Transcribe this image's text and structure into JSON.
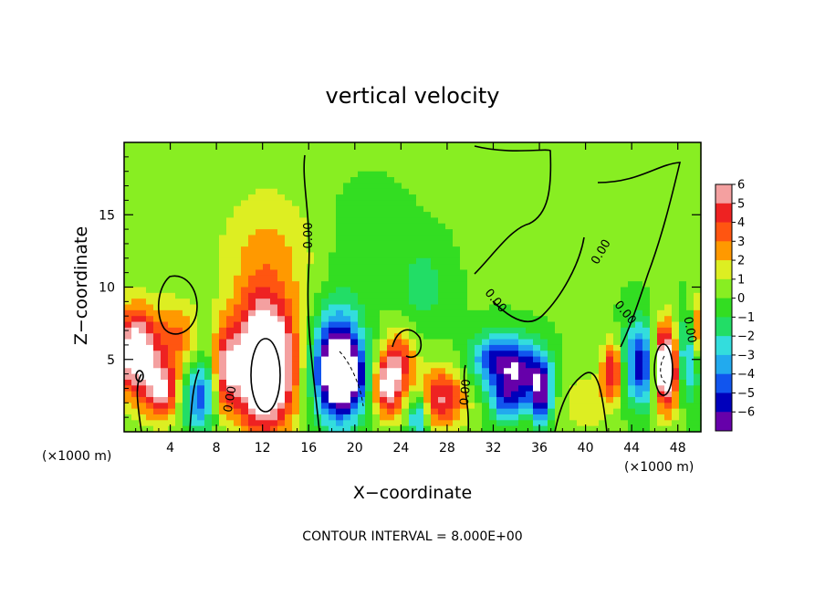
{
  "chart_data": {
    "type": "heatmap",
    "title": "vertical velocity",
    "xlabel": "X−coordinate",
    "ylabel": "Z−coordinate",
    "x_unit_left": "(×1000 m)",
    "x_unit_right": "(×1000 m)",
    "footer": "CONTOUR INTERVAL = 8.000E+00",
    "xlim": [
      0,
      50
    ],
    "ylim": [
      0,
      20
    ],
    "x_ticks": [
      4,
      8,
      12,
      16,
      20,
      24,
      28,
      32,
      36,
      40,
      44,
      48
    ],
    "x_tick_labels": [
      "4",
      "8",
      "12",
      "16",
      "20",
      "24",
      "28",
      "32",
      "36",
      "40",
      "44",
      "48"
    ],
    "y_ticks": [
      5,
      10,
      15
    ],
    "y_tick_labels": [
      "5",
      "10",
      "15"
    ],
    "colorbar": {
      "levels": [
        6,
        5,
        4,
        3,
        2,
        1,
        0,
        -1,
        -2,
        -3,
        -4,
        -5,
        -6
      ],
      "labels": [
        "6",
        "5",
        "4",
        "3",
        "2",
        "1",
        "0",
        "−1",
        "−2",
        "−3",
        "−4",
        "−5",
        "−6"
      ],
      "colors": [
        "#f4a0a0",
        "#ee2222",
        "#ff5511",
        "#ff9900",
        "#ddee22",
        "#88ee22",
        "#33dd22",
        "#22dd66",
        "#33dddd",
        "#22aaee",
        "#1155ee",
        "#0000bb",
        "#6600aa"
      ]
    },
    "contour_label": "0.00",
    "background_value": 0.6,
    "features": [
      {
        "x": 1.0,
        "z": 5.5,
        "amp": 7.5,
        "sx": 1.3,
        "sz": 2.2
      },
      {
        "x": 3.3,
        "z": 2.8,
        "amp": 5.5,
        "sx": 1.0,
        "sz": 1.4
      },
      {
        "x": 4.5,
        "z": 6.5,
        "amp": 3.0,
        "sx": 1.5,
        "sz": 1.8
      },
      {
        "x": 6.3,
        "z": 2.2,
        "amp": -4.0,
        "sx": 0.9,
        "sz": 1.6
      },
      {
        "x": 7.6,
        "z": 4.0,
        "amp": -3.5,
        "sx": 0.9,
        "sz": 2.0
      },
      {
        "x": 8.5,
        "z": 4.3,
        "amp": 6.0,
        "sx": 0.9,
        "sz": 2.0
      },
      {
        "x": 12.2,
        "z": 4.5,
        "amp": 11.0,
        "sx": 1.8,
        "sz": 3.0
      },
      {
        "x": 12.4,
        "z": 12.0,
        "amp": 2.2,
        "sx": 3.0,
        "sz": 3.5
      },
      {
        "x": 18.5,
        "z": 4.5,
        "amp": -9.0,
        "sx": 1.5,
        "sz": 2.6
      },
      {
        "x": 19.3,
        "z": 3.6,
        "amp": -4.0,
        "sx": 1.2,
        "sz": 1.5
      },
      {
        "x": 22.8,
        "z": 3.0,
        "amp": 6.0,
        "sx": 0.9,
        "sz": 1.4
      },
      {
        "x": 23.8,
        "z": 5.0,
        "amp": 4.0,
        "sx": 1.0,
        "sz": 1.5
      },
      {
        "x": 25.5,
        "z": 1.0,
        "amp": -4.5,
        "sx": 0.6,
        "sz": 1.2
      },
      {
        "x": 27.5,
        "z": 2.3,
        "amp": 5.0,
        "sx": 1.5,
        "sz": 1.5
      },
      {
        "x": 26.0,
        "z": 10.0,
        "amp": -1.6,
        "sx": 1.5,
        "sz": 2.0
      },
      {
        "x": 21.0,
        "z": 13.0,
        "amp": -0.8,
        "sx": 2.5,
        "sz": 2.5
      },
      {
        "x": 32.0,
        "z": 5.0,
        "amp": -4.5,
        "sx": 1.5,
        "sz": 1.3
      },
      {
        "x": 34.5,
        "z": 4.0,
        "amp": -6.0,
        "sx": 1.5,
        "sz": 1.5
      },
      {
        "x": 36.2,
        "z": 2.5,
        "amp": -5.5,
        "sx": 0.6,
        "sz": 1.5
      },
      {
        "x": 33.0,
        "z": 2.0,
        "amp": -3.5,
        "sx": 1.0,
        "sz": 1.0
      },
      {
        "x": 42.3,
        "z": 4.2,
        "amp": 5.0,
        "sx": 0.6,
        "sz": 1.4
      },
      {
        "x": 44.0,
        "z": 5.0,
        "amp": -2.5,
        "sx": 0.8,
        "sz": 2.0
      },
      {
        "x": 45.2,
        "z": 4.5,
        "amp": -5.5,
        "sx": 0.8,
        "sz": 2.0
      },
      {
        "x": 47.0,
        "z": 4.5,
        "amp": 10.0,
        "sx": 0.9,
        "sz": 2.0
      },
      {
        "x": 48.6,
        "z": 5.0,
        "amp": -5.0,
        "sx": 0.8,
        "sz": 2.0
      },
      {
        "x": 40.0,
        "z": 2.0,
        "amp": 1.8,
        "sx": 1.5,
        "sz": 1.5
      },
      {
        "x": 49.8,
        "z": 7.0,
        "amp": 4.0,
        "sx": 0.5,
        "sz": 1.5
      }
    ]
  }
}
